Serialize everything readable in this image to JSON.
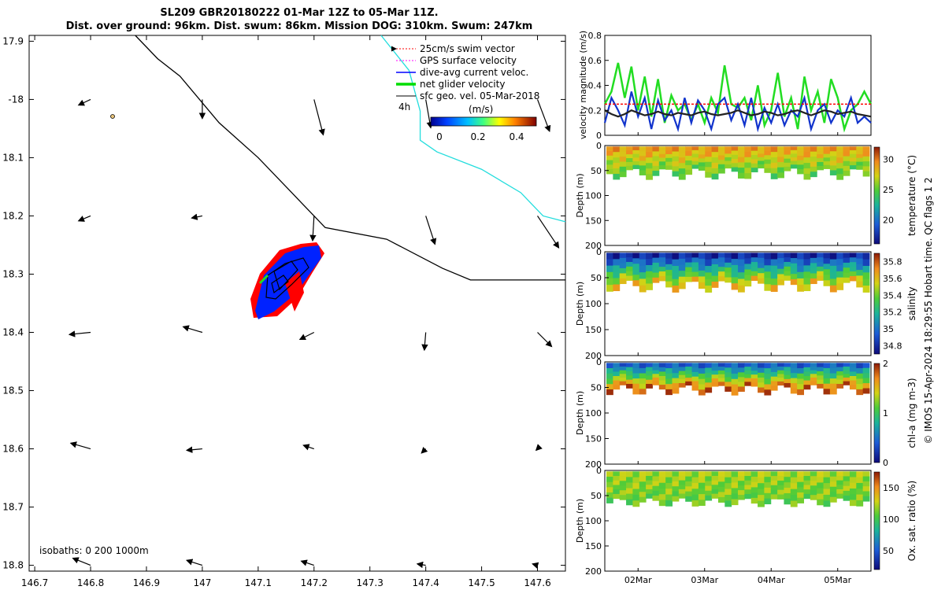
{
  "title": {
    "line1": "SL209 GBR20180222 01-Mar 12Z to 05-Mar 11Z.",
    "line2": "Dist. over ground: 96km. Dist. swum: 86km. Mission DOG: 310km. Swum: 247km"
  },
  "chart_data": [
    {
      "type": "map",
      "name": "glider-track-map",
      "lon_ticks": [
        "146.7",
        "146.8",
        "146.9",
        "147",
        "147.1",
        "147.2",
        "147.3",
        "147.4",
        "147.5",
        "147.6"
      ],
      "lat_ticks": [
        "17.9",
        "-18",
        "18.1",
        "18.2",
        "18.3",
        "18.4",
        "18.5",
        "18.6",
        "18.7",
        "18.8"
      ],
      "xlim": [
        146.69,
        147.65
      ],
      "ylim": [
        -18.81,
        -17.89
      ],
      "legend": [
        {
          "label": "25cm/s swim vector",
          "color": "#ff0000",
          "style": "dotted-arrow"
        },
        {
          "label": "GPS surface velocity",
          "color": "#ff00ff",
          "style": "dotted-arrow"
        },
        {
          "label": "dive-avg current veloc.",
          "color": "#0000ff",
          "style": "arrow"
        },
        {
          "label": "net glider velocity",
          "color": "#00dd00",
          "style": "thick-arrow"
        },
        {
          "label": "sfc geo. vel. 05-Mar-2018",
          "color": "#000000",
          "style": "arrow"
        }
      ],
      "time_marker": "4h",
      "colorbar": {
        "label": "(m/s)",
        "ticks": [
          "0",
          "0.2",
          "0.4"
        ],
        "range": [
          0,
          0.5
        ]
      },
      "isobaths_label": "isobaths: 0   200  1000m",
      "isobath_black": [
        [
          146.88,
          -17.89
        ],
        [
          146.92,
          -17.93
        ],
        [
          146.96,
          -17.96
        ],
        [
          147.03,
          -18.04
        ],
        [
          147.1,
          -18.1
        ],
        [
          147.16,
          -18.16
        ],
        [
          147.22,
          -18.22
        ],
        [
          147.33,
          -18.24
        ],
        [
          147.43,
          -18.29
        ],
        [
          147.48,
          -18.31
        ],
        [
          147.56,
          -18.31
        ],
        [
          147.65,
          -18.31
        ]
      ],
      "isobath_cyan": [
        [
          147.32,
          -17.89
        ],
        [
          147.37,
          -17.95
        ],
        [
          147.39,
          -18.02
        ],
        [
          147.39,
          -18.07
        ],
        [
          147.42,
          -18.09
        ],
        [
          147.5,
          -18.12
        ],
        [
          147.57,
          -18.16
        ],
        [
          147.61,
          -18.2
        ],
        [
          147.65,
          -18.21
        ]
      ],
      "geo_vectors": [
        {
          "lon": 146.8,
          "lat": -18.0,
          "u": -0.17,
          "v": -0.08
        },
        {
          "lon": 147.0,
          "lat": -18.0,
          "u": 0.0,
          "v": -0.27
        },
        {
          "lon": 147.2,
          "lat": -18.0,
          "u": 0.13,
          "v": -0.5
        },
        {
          "lon": 147.4,
          "lat": -18.0,
          "u": 0.07,
          "v": -0.4
        },
        {
          "lon": 147.6,
          "lat": -18.0,
          "u": 0.17,
          "v": -0.45
        },
        {
          "lon": 146.8,
          "lat": -18.2,
          "u": -0.17,
          "v": -0.07
        },
        {
          "lon": 147.0,
          "lat": -18.2,
          "u": -0.15,
          "v": -0.03
        },
        {
          "lon": 147.2,
          "lat": -18.2,
          "u": -0.02,
          "v": -0.35
        },
        {
          "lon": 147.4,
          "lat": -18.2,
          "u": 0.13,
          "v": -0.4
        },
        {
          "lon": 147.6,
          "lat": -18.2,
          "u": 0.3,
          "v": -0.45
        },
        {
          "lon": 146.8,
          "lat": -18.4,
          "u": -0.3,
          "v": -0.03
        },
        {
          "lon": 147.0,
          "lat": -18.4,
          "u": -0.27,
          "v": 0.08
        },
        {
          "lon": 147.2,
          "lat": -18.4,
          "u": -0.2,
          "v": -0.1
        },
        {
          "lon": 147.4,
          "lat": -18.4,
          "u": -0.02,
          "v": -0.25
        },
        {
          "lon": 147.6,
          "lat": -18.4,
          "u": 0.2,
          "v": -0.2
        },
        {
          "lon": 146.8,
          "lat": -18.6,
          "u": -0.28,
          "v": 0.08
        },
        {
          "lon": 147.0,
          "lat": -18.6,
          "u": -0.22,
          "v": -0.02
        },
        {
          "lon": 147.2,
          "lat": -18.6,
          "u": -0.15,
          "v": 0.05
        },
        {
          "lon": 147.4,
          "lat": -18.6,
          "u": -0.06,
          "v": -0.06
        },
        {
          "lon": 147.6,
          "lat": -18.6,
          "u": -0.02,
          "v": -0.02
        },
        {
          "lon": 146.8,
          "lat": -18.8,
          "u": -0.25,
          "v": 0.1
        },
        {
          "lon": 147.0,
          "lat": -18.8,
          "u": -0.22,
          "v": 0.07
        },
        {
          "lon": 147.2,
          "lat": -18.8,
          "u": -0.18,
          "v": 0.06
        },
        {
          "lon": 147.4,
          "lat": -18.8,
          "u": -0.12,
          "v": 0.02
        },
        {
          "lon": 147.6,
          "lat": -18.8,
          "u": -0.07,
          "v": 0.02
        }
      ]
    },
    {
      "type": "line",
      "name": "velocity-magnitude",
      "ylabel": "velocity magnitude (m/s)",
      "y_ticks": [
        "0",
        "0.2",
        "0.4",
        "0.6",
        "0.8"
      ],
      "ylim": [
        0,
        0.8
      ],
      "xlim": [
        1.5,
        5.5
      ],
      "x": [
        1.5,
        1.6,
        1.7,
        1.8,
        1.9,
        2.0,
        2.1,
        2.2,
        2.3,
        2.4,
        2.5,
        2.6,
        2.7,
        2.8,
        2.9,
        3.0,
        3.1,
        3.2,
        3.3,
        3.4,
        3.5,
        3.6,
        3.7,
        3.8,
        3.9,
        4.0,
        4.1,
        4.2,
        4.3,
        4.4,
        4.5,
        4.6,
        4.7,
        4.8,
        4.9,
        5.0,
        5.1,
        5.2,
        5.3,
        5.4,
        5.5
      ],
      "series": [
        {
          "name": "net glider velocity",
          "color": "#22dd22",
          "values": [
            0.25,
            0.35,
            0.58,
            0.3,
            0.55,
            0.2,
            0.47,
            0.15,
            0.45,
            0.1,
            0.32,
            0.2,
            0.25,
            0.12,
            0.25,
            0.1,
            0.3,
            0.18,
            0.56,
            0.25,
            0.22,
            0.3,
            0.12,
            0.4,
            0.08,
            0.2,
            0.5,
            0.15,
            0.3,
            0.05,
            0.47,
            0.2,
            0.35,
            0.1,
            0.45,
            0.3,
            0.05,
            0.2,
            0.25,
            0.35,
            0.25
          ]
        },
        {
          "name": "dive-avg current veloc.",
          "color": "#1133cc",
          "values": [
            0.1,
            0.3,
            0.2,
            0.08,
            0.35,
            0.15,
            0.3,
            0.05,
            0.28,
            0.12,
            0.2,
            0.05,
            0.3,
            0.1,
            0.28,
            0.2,
            0.05,
            0.25,
            0.3,
            0.12,
            0.25,
            0.08,
            0.3,
            0.05,
            0.22,
            0.1,
            0.25,
            0.08,
            0.2,
            0.15,
            0.3,
            0.05,
            0.2,
            0.25,
            0.1,
            0.2,
            0.15,
            0.3,
            0.1,
            0.15,
            0.1
          ]
        },
        {
          "name": "sfc geo. vel.",
          "color": "#222222",
          "values": [
            0.2,
            0.17,
            0.15,
            0.17,
            0.2,
            0.18,
            0.16,
            0.17,
            0.19,
            0.17,
            0.16,
            0.18,
            0.17,
            0.16,
            0.18,
            0.19,
            0.17,
            0.16,
            0.17,
            0.18,
            0.2,
            0.18,
            0.16,
            0.17,
            0.19,
            0.18,
            0.16,
            0.17,
            0.19,
            0.2,
            0.18,
            0.16,
            0.18,
            0.2,
            0.19,
            0.17,
            0.18,
            0.19,
            0.17,
            0.16,
            0.15
          ]
        },
        {
          "name": "25cm/s swim vector",
          "color": "#ff0000",
          "values": [
            0.25,
            0.25,
            0.25,
            0.25,
            0.25,
            0.25,
            0.25,
            0.25,
            0.25,
            0.25,
            0.25,
            0.25,
            0.25,
            0.25,
            0.25,
            0.25,
            0.25,
            0.25,
            0.25,
            0.25,
            0.25,
            0.25,
            0.25,
            0.25,
            0.25,
            0.25,
            0.25,
            0.25,
            0.25,
            0.25,
            0.25,
            0.25,
            0.25,
            0.25,
            0.25,
            0.25,
            0.25,
            0.25,
            0.25,
            0.25,
            0.25
          ]
        }
      ]
    },
    {
      "type": "heatmap",
      "name": "temperature-section",
      "ylabel": "Depth (m)",
      "y_ticks": [
        "0",
        "50",
        "100",
        "150",
        "200"
      ],
      "ylim": [
        200,
        0
      ],
      "colorbar_label": "temperature (°C)",
      "colorbar_ticks": [
        "20",
        "25",
        "30"
      ],
      "crange": [
        16,
        32
      ],
      "surface_value": 29,
      "bottom_value": 25,
      "bottom_depth_range": [
        45,
        68
      ]
    },
    {
      "type": "heatmap",
      "name": "salinity-section",
      "ylabel": "Depth (m)",
      "y_ticks": [
        "0",
        "50",
        "100",
        "150",
        "200"
      ],
      "ylim": [
        200,
        0
      ],
      "colorbar_label": "salinity",
      "colorbar_ticks": [
        "34.8",
        "35",
        "35.2",
        "35.4",
        "35.6",
        "35.8"
      ],
      "crange": [
        34.7,
        35.9
      ],
      "surface_value": 34.8,
      "bottom_value": 35.6,
      "bottom_depth_range": [
        55,
        78
      ]
    },
    {
      "type": "heatmap",
      "name": "chl-a-section",
      "ylabel": "Depth (m)",
      "y_ticks": [
        "0",
        "50",
        "100",
        "150",
        "200"
      ],
      "ylim": [
        200,
        0
      ],
      "colorbar_label": "chl-a (mg m-3)",
      "colorbar_ticks": [
        "0",
        "1",
        "2"
      ],
      "crange": [
        0,
        2
      ],
      "surface_value": 0.4,
      "bottom_value": 1.8,
      "bottom_depth_range": [
        45,
        65
      ]
    },
    {
      "type": "heatmap",
      "name": "oxygen-section",
      "ylabel": "Depth (m)",
      "y_ticks": [
        "0",
        "50",
        "100",
        "150",
        "200"
      ],
      "ylim": [
        200,
        0
      ],
      "colorbar_label": "Ox. sat. ratio (%)",
      "colorbar_ticks": [
        "50",
        "100",
        "150"
      ],
      "crange": [
        20,
        175
      ],
      "surface_value": 120,
      "bottom_value": 110,
      "bottom_depth_range": [
        55,
        72
      ]
    }
  ],
  "date_ticks": [
    "02Mar",
    "03Mar",
    "04Mar",
    "05Mar"
  ],
  "date_values": [
    2,
    3,
    4,
    5
  ],
  "side_credit": "© IMOS 15-Apr-2024 18:29:55 Hobart time. QC flags 1  2",
  "colors": {
    "track_blue": "#0022ff",
    "track_red": "#ff0000",
    "isobath": "#000000",
    "isobath_cyan": "#22dddd"
  }
}
